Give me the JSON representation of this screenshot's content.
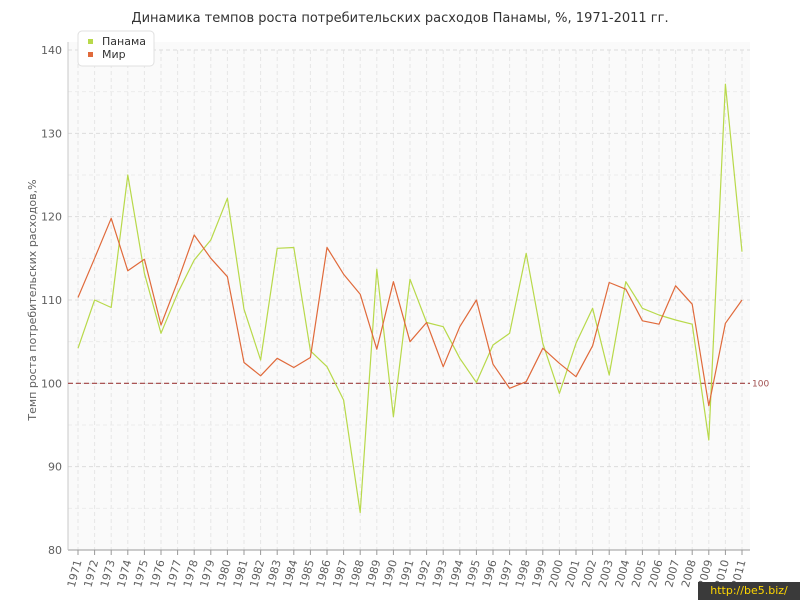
{
  "chart_data": {
    "type": "line",
    "title": "Динамика темпов роста потребительских расходов Панамы, %, 1971-2011 гг.",
    "ylabel": "Темп роста потребительских расходов,%",
    "xlabel": "",
    "ylim": [
      80,
      140
    ],
    "y_ticks": [
      "80",
      "90",
      "100",
      "110",
      "120",
      "130",
      "140"
    ],
    "grid": true,
    "legend_position": "top-left",
    "categories": [
      "1971",
      "1972",
      "1973",
      "1974",
      "1975",
      "1976",
      "1977",
      "1978",
      "1979",
      "1980",
      "1981",
      "1982",
      "1983",
      "1984",
      "1985",
      "1986",
      "1987",
      "1988",
      "1989",
      "1990",
      "1991",
      "1992",
      "1993",
      "1994",
      "1995",
      "1996",
      "1997",
      "1998",
      "1999",
      "2000",
      "2001",
      "2002",
      "2003",
      "2004",
      "2005",
      "2006",
      "2007",
      "2008",
      "2009",
      "2010",
      "2011"
    ],
    "series": [
      {
        "name": "Панама",
        "color": "#b8d94a",
        "values": [
          104.2,
          110.0,
          109.1,
          125.0,
          113.2,
          106.0,
          110.8,
          114.8,
          117.2,
          122.2,
          108.9,
          102.8,
          116.2,
          116.3,
          103.9,
          102.0,
          98.0,
          84.5,
          113.7,
          96.0,
          112.5,
          107.3,
          106.8,
          103.0,
          100.1,
          104.6,
          106.0,
          115.6,
          104.8,
          98.8,
          104.8,
          109.0,
          101.0,
          112.2,
          109.0,
          108.2,
          107.6,
          107.1,
          93.2,
          135.9,
          115.8
        ]
      },
      {
        "name": "Мир",
        "color": "#e06a3b",
        "values": [
          110.3,
          115.0,
          119.8,
          113.5,
          114.9,
          107.0,
          112.2,
          117.8,
          115.0,
          112.8,
          102.5,
          100.9,
          103.0,
          101.9,
          103.1,
          116.3,
          113.1,
          110.7,
          104.1,
          112.2,
          105.0,
          107.3,
          102.0,
          106.8,
          110.0,
          102.3,
          99.4,
          100.2,
          104.2,
          102.4,
          100.8,
          104.5,
          112.1,
          111.3,
          107.5,
          107.1,
          111.7,
          109.5,
          97.3,
          107.2,
          110.0
        ]
      }
    ],
    "reference_line": {
      "value": 100,
      "label": "100",
      "color": "#a04040"
    }
  },
  "credit": "http://be5.biz/"
}
